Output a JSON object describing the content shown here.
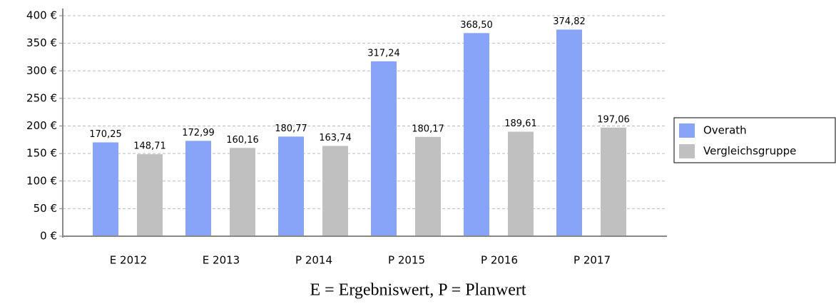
{
  "chart_data": {
    "type": "bar",
    "categories": [
      "E 2012",
      "E 2013",
      "P 2014",
      "P 2015",
      "P 2016",
      "P 2017"
    ],
    "series": [
      {
        "name": "Overath",
        "color": "#88a4f8",
        "values": [
          170.25,
          172.99,
          180.77,
          317.24,
          368.5,
          374.82
        ],
        "value_labels": [
          "170,25",
          "172,99",
          "180,77",
          "317,24",
          "368,50",
          "374,82"
        ]
      },
      {
        "name": "Vergleichsgruppe",
        "color": "#c0c0c0",
        "values": [
          148.71,
          160.16,
          163.74,
          180.17,
          189.61,
          197.06
        ],
        "value_labels": [
          "148,71",
          "160,16",
          "163,74",
          "180,17",
          "189,61",
          "197,06"
        ]
      }
    ],
    "ylim": [
      0,
      400
    ],
    "yticks": [
      {
        "value": 0,
        "label": "0 €"
      },
      {
        "value": 50,
        "label": "50 €"
      },
      {
        "value": 100,
        "label": "100 €"
      },
      {
        "value": 150,
        "label": "150 €"
      },
      {
        "value": 200,
        "label": "200 €"
      },
      {
        "value": 250,
        "label": "250 €"
      },
      {
        "value": 300,
        "label": "300 €"
      },
      {
        "value": 350,
        "label": "350 €"
      },
      {
        "value": 400,
        "label": "400 €"
      }
    ],
    "grid": true,
    "legend": "right",
    "caption": "E = Ergebniswert, P = Planwert"
  }
}
